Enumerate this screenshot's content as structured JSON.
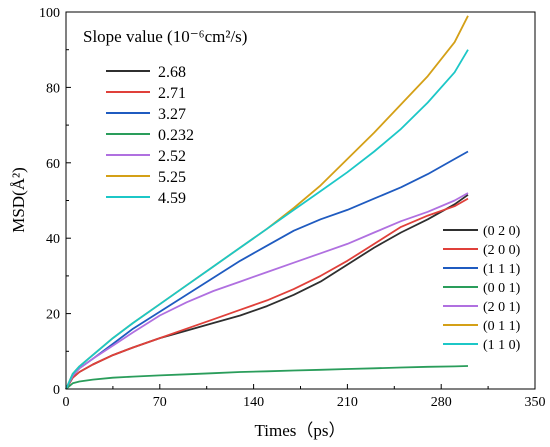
{
  "chart_data": {
    "type": "line",
    "title": "",
    "xlabel": "Times（ps）",
    "ylabel": "MSD(Å²)",
    "xlim": [
      0,
      350
    ],
    "ylim": [
      0,
      100
    ],
    "xticks": [
      "0",
      "70",
      "140",
      "210",
      "280",
      "350"
    ],
    "yticks": [
      "0",
      "20",
      "40",
      "60",
      "80",
      "100"
    ],
    "grid": false,
    "slope_legend": {
      "title": "Slope value (10⁻⁶cm²/s)",
      "entries": [
        "2.68",
        "2.71",
        "3.27",
        "0.232",
        "2.52",
        "5.25",
        "4.59"
      ]
    },
    "legend_placement": "bottom-right",
    "series": [
      {
        "name": "(0 2 0)",
        "color": "#2f2f2f",
        "x": [
          0,
          5,
          10,
          20,
          35,
          50,
          70,
          90,
          110,
          130,
          150,
          170,
          190,
          210,
          230,
          250,
          270,
          290,
          300
        ],
        "y": [
          0,
          3,
          4.5,
          6.5,
          9,
          11,
          13.5,
          15.5,
          17.5,
          19.5,
          22,
          25,
          28.5,
          33,
          37.5,
          41.5,
          45,
          49,
          51.5
        ]
      },
      {
        "name": "(2 0 0)",
        "color": "#e0403a",
        "x": [
          0,
          5,
          10,
          20,
          35,
          50,
          70,
          90,
          110,
          130,
          150,
          170,
          190,
          210,
          230,
          250,
          270,
          290,
          300
        ],
        "y": [
          0,
          3,
          4.5,
          6.5,
          9,
          11,
          13.5,
          16,
          18.5,
          21,
          23.5,
          26.5,
          30,
          34,
          38.5,
          43,
          46,
          48.5,
          50.5
        ]
      },
      {
        "name": "(1 1 1)",
        "color": "#1f5bc0",
        "x": [
          0,
          5,
          10,
          20,
          35,
          50,
          70,
          90,
          110,
          130,
          150,
          170,
          190,
          210,
          230,
          250,
          270,
          290,
          300
        ],
        "y": [
          0,
          3.5,
          5.5,
          8,
          12,
          16,
          20.5,
          25,
          29.5,
          34,
          38,
          42,
          45,
          47.5,
          50.5,
          53.5,
          57,
          61,
          63
        ]
      },
      {
        "name": "(0 0 1)",
        "color": "#2a9d5b",
        "x": [
          0,
          5,
          10,
          20,
          35,
          50,
          70,
          90,
          110,
          130,
          150,
          170,
          190,
          210,
          230,
          250,
          270,
          290,
          300
        ],
        "y": [
          0,
          1.5,
          2,
          2.5,
          3,
          3.3,
          3.6,
          3.9,
          4.2,
          4.5,
          4.7,
          4.9,
          5.1,
          5.3,
          5.5,
          5.7,
          5.9,
          6.0,
          6.1
        ]
      },
      {
        "name": "(2 0 1)",
        "color": "#b070e0",
        "x": [
          0,
          5,
          10,
          20,
          35,
          50,
          70,
          90,
          110,
          130,
          150,
          170,
          190,
          210,
          230,
          250,
          270,
          290,
          300
        ],
        "y": [
          0,
          3.5,
          5.5,
          8,
          11.5,
          15,
          19.5,
          23,
          26,
          28.5,
          31,
          33.5,
          36,
          38.5,
          41.5,
          44.5,
          47,
          50,
          52
        ]
      },
      {
        "name": "(0 1 1)",
        "color": "#d4a017",
        "x": [
          0,
          5,
          10,
          20,
          35,
          50,
          70,
          90,
          110,
          130,
          150,
          170,
          190,
          210,
          230,
          250,
          270,
          290,
          300
        ],
        "y": [
          0,
          4,
          6,
          9,
          13.5,
          17.5,
          22.5,
          27.5,
          32.5,
          37.5,
          42.5,
          48,
          54,
          61,
          68,
          75.5,
          83,
          92,
          99
        ]
      },
      {
        "name": "(1 1 0)",
        "color": "#1cc7c7",
        "x": [
          0,
          5,
          10,
          20,
          35,
          50,
          70,
          90,
          110,
          130,
          150,
          170,
          190,
          210,
          230,
          250,
          270,
          290,
          300
        ],
        "y": [
          0,
          4,
          6,
          9,
          13.5,
          17.5,
          22.5,
          27.5,
          32.5,
          37.5,
          42.5,
          47.5,
          52.5,
          57.5,
          63,
          69,
          76,
          84,
          90
        ]
      }
    ]
  }
}
